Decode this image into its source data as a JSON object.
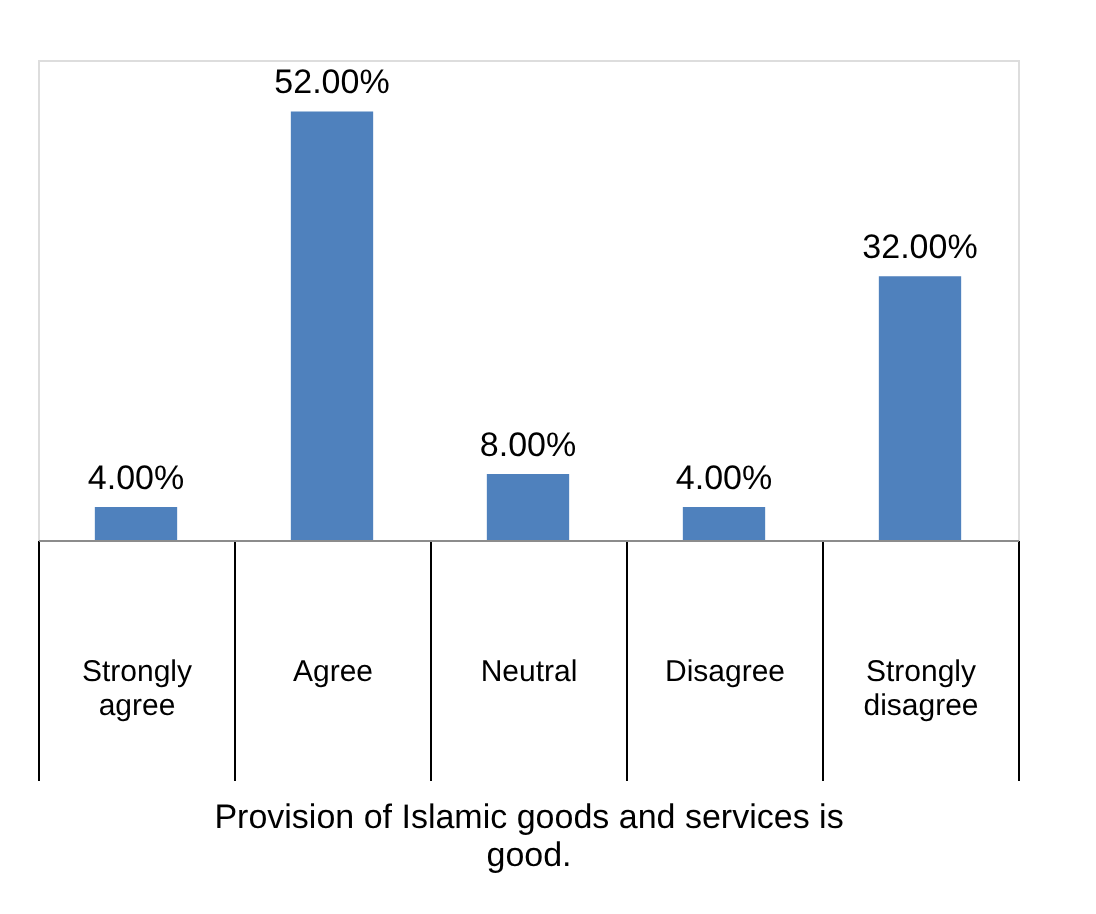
{
  "chart_data": {
    "type": "bar",
    "xlabel": "Provision of Islamic goods and services is good.",
    "categories": [
      "Strongly agree",
      "Agree",
      "Neutral",
      "Disagree",
      "Strongly disagree"
    ],
    "values": [
      4,
      52,
      8,
      4,
      32
    ],
    "value_labels": [
      "4.00%",
      "52.00%",
      "8.00%",
      "4.00%",
      "32.00%"
    ],
    "color": "#4f81bd"
  }
}
